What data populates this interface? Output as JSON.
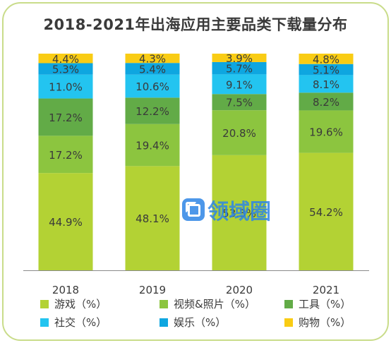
{
  "chart_data": {
    "type": "stacked-bar",
    "title": "2018-2021年出海应用主要品类下载量分布",
    "categories": [
      "2018",
      "2019",
      "2020",
      "2021"
    ],
    "series": [
      {
        "name": "游戏（%）",
        "color": "#b3d234",
        "values": [
          44.9,
          48.1,
          53.3,
          54.2
        ]
      },
      {
        "name": "视频&照片（%）",
        "color": "#8cc53f",
        "values": [
          17.2,
          19.4,
          20.8,
          19.6
        ]
      },
      {
        "name": "工具（%）",
        "color": "#62ab47",
        "values": [
          17.2,
          12.2,
          7.5,
          8.2
        ]
      },
      {
        "name": "社交（%）",
        "color": "#23c4f0",
        "values": [
          11.0,
          10.6,
          9.1,
          8.1
        ]
      },
      {
        "name": "娱乐（%）",
        "color": "#0ea6e0",
        "values": [
          5.3,
          5.4,
          5.7,
          5.1
        ]
      },
      {
        "name": "购物（%）",
        "color": "#f9cc14",
        "values": [
          4.4,
          4.3,
          3.9,
          4.8
        ]
      }
    ],
    "value_format": "%",
    "legend_position": "bottom",
    "grid": false
  },
  "watermark": {
    "text": "领域圈",
    "icon": "box-logo-icon"
  }
}
